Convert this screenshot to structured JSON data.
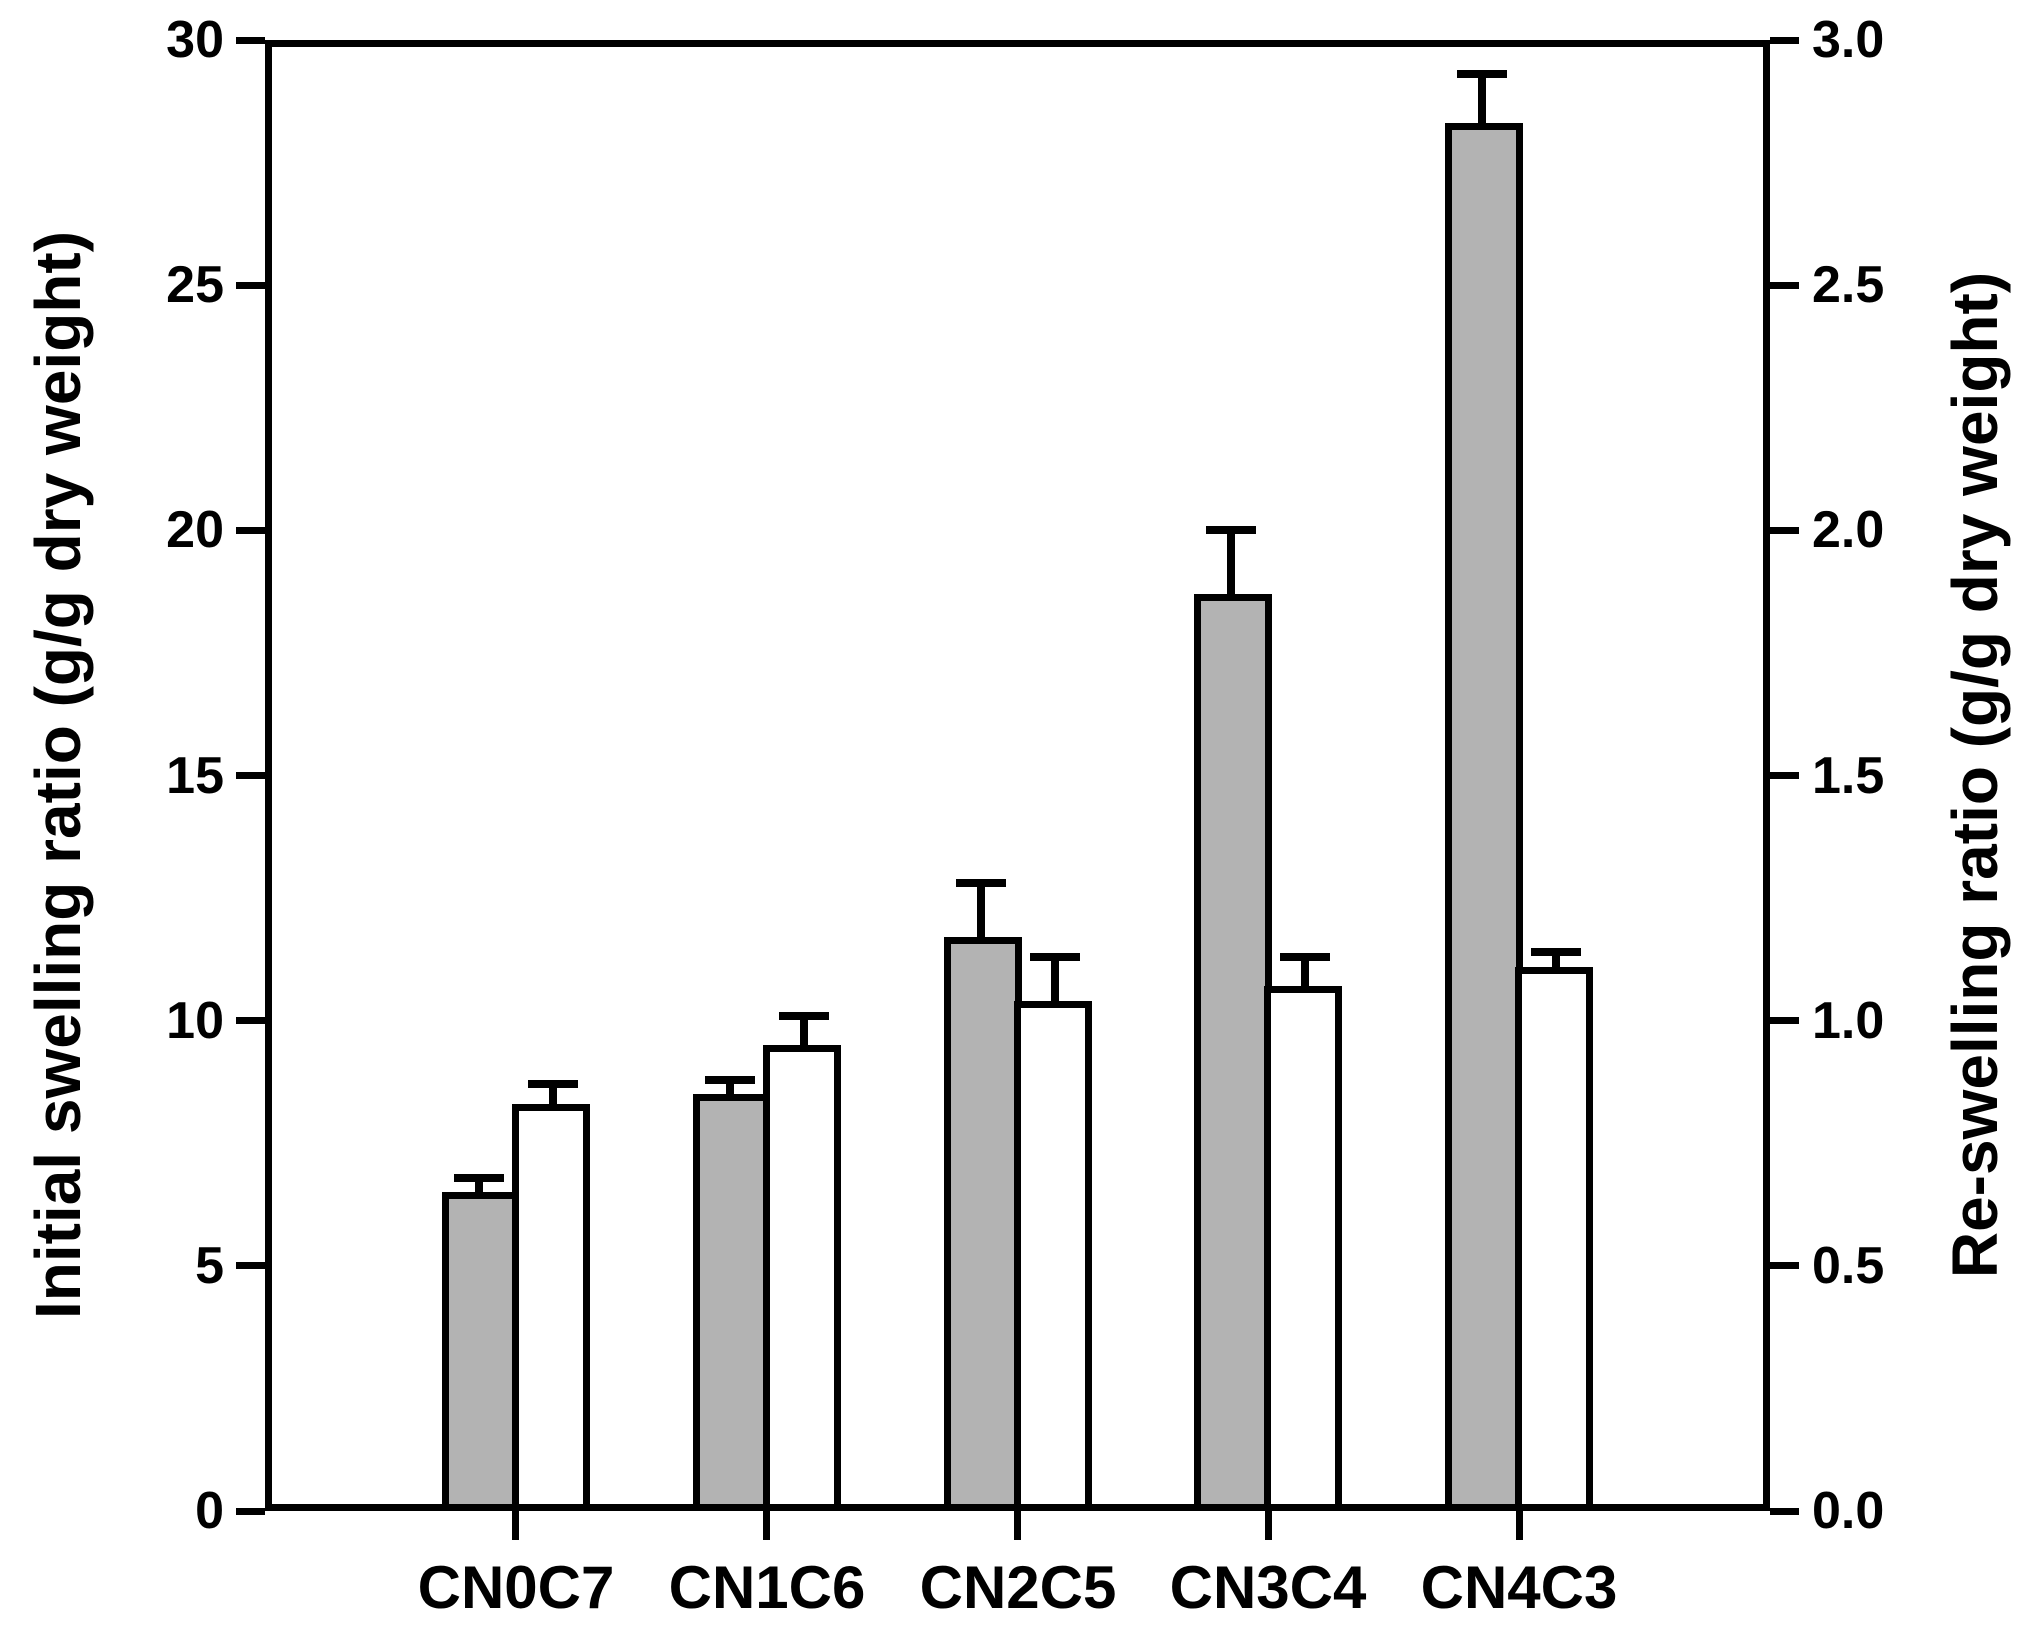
{
  "chart_data": {
    "type": "bar",
    "categories": [
      "CN0C7",
      "CN1C6",
      "CN2C5",
      "CN3C4",
      "CN4C3"
    ],
    "series": [
      {
        "name": "Initial swelling ratio",
        "axis": "left",
        "fill": "#b3b3b3",
        "values": [
          6.5,
          8.5,
          11.7,
          18.7,
          28.3
        ],
        "errors": [
          0.3,
          0.3,
          1.1,
          1.3,
          1.0
        ]
      },
      {
        "name": "Re-swelling ratio",
        "axis": "right",
        "fill": "#ffffff",
        "values": [
          0.83,
          0.95,
          1.04,
          1.07,
          1.11
        ],
        "errors": [
          0.04,
          0.06,
          0.09,
          0.06,
          0.03
        ]
      }
    ],
    "left_axis": {
      "label": "Initial swelling ratio (g/g dry weight)",
      "range": [
        0,
        30
      ],
      "tick_values": [
        0,
        5,
        10,
        15,
        20,
        25,
        30
      ],
      "ticks": [
        "0",
        "5",
        "10",
        "15",
        "20",
        "25",
        "30"
      ]
    },
    "right_axis": {
      "label": "Re-swelling ratio (g/g dry weight)",
      "range": [
        0.0,
        3.0
      ],
      "tick_values": [
        0.0,
        0.5,
        1.0,
        1.5,
        2.0,
        2.5,
        3.0
      ],
      "ticks": [
        "0.0",
        "0.5",
        "1.0",
        "1.5",
        "2.0",
        "2.5",
        "3.0"
      ]
    },
    "grid": false,
    "legend": "none",
    "title": "",
    "bar_outline_color": "#000000",
    "error_bar_color": "#000000",
    "error_bar_style": "upper-cap"
  }
}
